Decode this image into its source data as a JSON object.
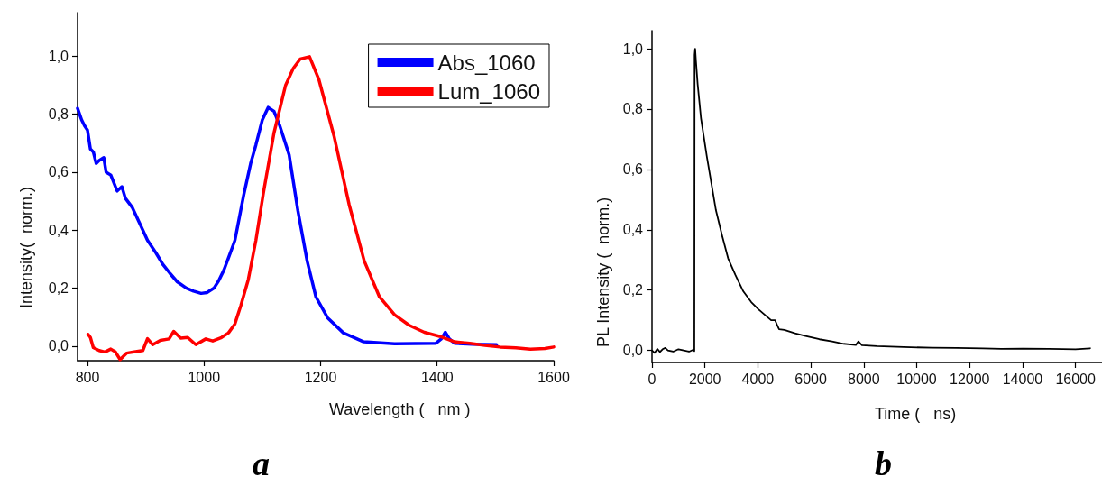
{
  "chart_data": [
    {
      "type": "line",
      "xlabel": "Wavelength (   nm )",
      "ylabel": "Intensity(  norm.)",
      "annotations": [
        "a"
      ],
      "legend": "top right",
      "grid": false,
      "marker": "none",
      "line_style": "solid",
      "xlim": [
        783,
        1600
      ],
      "xticks": [
        800,
        1000,
        1200,
        1400,
        1600
      ],
      "ylim": [
        -0.05,
        1.15
      ],
      "yticks": [
        {
          "value": 0,
          "label": "0,0"
        },
        {
          "value": 0.2,
          "label": "0,2"
        },
        {
          "value": 0.4,
          "label": "0,4"
        },
        {
          "value": 0.6,
          "label": "0,6"
        },
        {
          "value": 0.8,
          "label": "0,8"
        },
        {
          "value": 1,
          "label": "1,0"
        }
      ],
      "series": [
        {
          "name": "Abs_1060",
          "color": "#0000ff",
          "x": [
            783,
            790,
            795,
            800,
            805,
            810,
            815,
            820,
            828,
            832,
            840,
            851,
            859,
            865,
            877,
            890,
            903,
            918,
            929,
            942,
            954,
            970,
            982,
            995,
            1005,
            1017,
            1025,
            1034,
            1043,
            1053,
            1068,
            1080,
            1089,
            1100,
            1110,
            1120,
            1130,
            1146,
            1161,
            1177,
            1192,
            1212,
            1239,
            1274,
            1327,
            1398,
            1407,
            1414,
            1421,
            1430,
            1460,
            1502
          ],
          "values": [
            0.82,
            0.78,
            0.76,
            0.745,
            0.68,
            0.67,
            0.63,
            0.64,
            0.65,
            0.6,
            0.59,
            0.535,
            0.55,
            0.51,
            0.478,
            0.422,
            0.365,
            0.32,
            0.283,
            0.25,
            0.222,
            0.2,
            0.19,
            0.182,
            0.185,
            0.2,
            0.225,
            0.262,
            0.31,
            0.365,
            0.52,
            0.63,
            0.694,
            0.78,
            0.823,
            0.81,
            0.76,
            0.66,
            0.468,
            0.293,
            0.17,
            0.098,
            0.046,
            0.015,
            0.008,
            0.01,
            0.025,
            0.048,
            0.025,
            0.01,
            0.007,
            0.005
          ]
        },
        {
          "name": "Lum_1060",
          "color": "#ff0000",
          "x": [
            801,
            805,
            810,
            820,
            830,
            840,
            848,
            856,
            867,
            880,
            895,
            903,
            912,
            925,
            940,
            948,
            960,
            972,
            986,
            1003,
            1015,
            1030,
            1042,
            1053,
            1063,
            1076,
            1089,
            1102,
            1120,
            1140,
            1153,
            1165,
            1181,
            1197,
            1223,
            1249,
            1275,
            1301,
            1327,
            1352,
            1378,
            1404,
            1430,
            1456,
            1482,
            1508,
            1535,
            1560,
            1585,
            1600
          ],
          "values": [
            0.041,
            0.03,
            -0.005,
            -0.015,
            -0.02,
            -0.01,
            -0.02,
            -0.046,
            -0.024,
            -0.02,
            -0.015,
            0.026,
            0.005,
            0.02,
            0.025,
            0.051,
            0.028,
            0.03,
            0.005,
            0.025,
            0.018,
            0.03,
            0.046,
            0.077,
            0.139,
            0.23,
            0.365,
            0.53,
            0.735,
            0.9,
            0.957,
            0.99,
            0.998,
            0.92,
            0.725,
            0.488,
            0.293,
            0.17,
            0.108,
            0.072,
            0.048,
            0.034,
            0.015,
            0.01,
            0.003,
            -0.003,
            -0.006,
            -0.01,
            -0.008,
            -0.003
          ]
        }
      ]
    },
    {
      "type": "line",
      "xlabel": "Time (   ns)",
      "ylabel": "PL Intensity (  norm.)",
      "annotations": [
        "b"
      ],
      "legend": false,
      "grid": false,
      "marker": "none",
      "line_style": "solid",
      "xlim": [
        0,
        17000
      ],
      "xticks": [
        0,
        2000,
        4000,
        6000,
        8000,
        10000,
        12000,
        14000,
        16000
      ],
      "ylim": [
        -0.04,
        1.06
      ],
      "yticks": [
        {
          "value": 0,
          "label": "0,0"
        },
        {
          "value": 0.2,
          "label": "0,2"
        },
        {
          "value": 0.4,
          "label": "0,4"
        },
        {
          "value": 0.6,
          "label": "0,6"
        },
        {
          "value": 0.8,
          "label": "0,8"
        },
        {
          "value": 1,
          "label": "1,0"
        }
      ],
      "series": [
        {
          "color": "#000000",
          "x": [
            0,
            100,
            200,
            300,
            400,
            500,
            600,
            800,
            1000,
            1200,
            1400,
            1550,
            1600,
            1610,
            1630,
            1660,
            1724,
            1850,
            2069,
            2250,
            2414,
            2650,
            2876,
            3150,
            3448,
            3750,
            4024,
            4300,
            4500,
            4650,
            4713,
            4800,
            5000,
            5402,
            5800,
            6324,
            6800,
            7241,
            7700,
            7800,
            7931,
            8500,
            9500,
            10575,
            11500,
            12500,
            13200,
            14023,
            15000,
            16000,
            16552
          ],
          "values": [
            0.0,
            -0.008,
            0.005,
            -0.005,
            0.004,
            0.008,
            0.0,
            -0.004,
            0.004,
            0.0,
            -0.004,
            0.002,
            -0.002,
            0.98,
            1.0,
            0.96,
            0.883,
            0.77,
            0.644,
            0.55,
            0.465,
            0.38,
            0.305,
            0.25,
            0.196,
            0.16,
            0.136,
            0.115,
            0.1,
            0.1,
            0.087,
            0.07,
            0.068,
            0.057,
            0.048,
            0.037,
            0.03,
            0.022,
            0.018,
            0.03,
            0.017,
            0.014,
            0.011,
            0.009,
            0.008,
            0.007,
            0.005,
            0.006,
            0.005,
            0.004,
            0.007
          ]
        }
      ]
    }
  ]
}
